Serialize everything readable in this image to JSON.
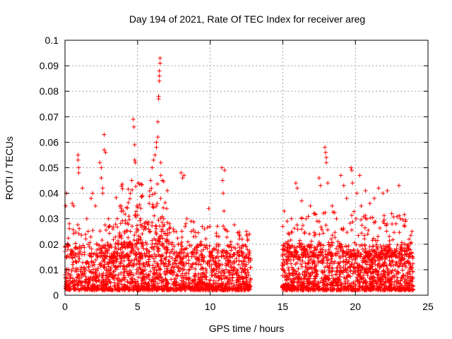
{
  "chart_data": {
    "type": "scatter",
    "title": "Day 194 of 2021, Rate Of TEC Index for receiver areg",
    "xlabel": "GPS time / hours",
    "ylabel": "ROTI / TECUs",
    "xlim": [
      0,
      25
    ],
    "ylim": [
      0,
      0.1
    ],
    "x_ticks": [
      0,
      5,
      10,
      15,
      20,
      25
    ],
    "x_tick_labels": [
      "0",
      "5",
      "10",
      "15",
      "20",
      "25"
    ],
    "y_ticks": [
      0,
      0.01,
      0.02,
      0.03,
      0.04,
      0.05,
      0.06,
      0.07,
      0.08,
      0.09,
      0.1
    ],
    "y_tick_labels": [
      "0",
      "0.01",
      "0.02",
      "0.03",
      "0.04",
      "0.05",
      "0.06",
      "0.07",
      "0.08",
      "0.09",
      "0.1"
    ],
    "grid": true,
    "marker": "plus",
    "color": "#ff0000",
    "data_gap_hours": [
      12.8,
      14.9
    ],
    "series": [
      {
        "values": [
          [
            0.05,
            0.035
          ],
          [
            0.1,
            0.04
          ],
          [
            0.3,
            0.028
          ],
          [
            0.5,
            0.036
          ],
          [
            0.6,
            0.035
          ],
          [
            0.9,
            0.055
          ],
          [
            0.9,
            0.053
          ],
          [
            0.95,
            0.05
          ],
          [
            0.95,
            0.048
          ],
          [
            1.2,
            0.042
          ],
          [
            1.5,
            0.03
          ],
          [
            1.8,
            0.038
          ],
          [
            1.9,
            0.04
          ],
          [
            2.1,
            0.035
          ],
          [
            2.4,
            0.052
          ],
          [
            2.5,
            0.05
          ],
          [
            2.5,
            0.046
          ],
          [
            2.6,
            0.042
          ],
          [
            2.6,
            0.04
          ],
          [
            2.7,
            0.063
          ],
          [
            2.7,
            0.057
          ],
          [
            2.8,
            0.056
          ],
          [
            3.0,
            0.03
          ],
          [
            3.3,
            0.026
          ],
          [
            3.6,
            0.03
          ],
          [
            3.9,
            0.033
          ],
          [
            4.1,
            0.025
          ],
          [
            4.4,
            0.031
          ],
          [
            4.5,
            0.04
          ],
          [
            4.6,
            0.045
          ],
          [
            4.7,
            0.069
          ],
          [
            4.75,
            0.066
          ],
          [
            4.8,
            0.053
          ],
          [
            4.8,
            0.059
          ],
          [
            4.85,
            0.052
          ],
          [
            5.2,
            0.03
          ],
          [
            5.5,
            0.027
          ],
          [
            5.8,
            0.036
          ],
          [
            5.9,
            0.045
          ],
          [
            6.0,
            0.05
          ],
          [
            6.1,
            0.053
          ],
          [
            6.2,
            0.055
          ],
          [
            6.2,
            0.04
          ],
          [
            6.3,
            0.058
          ],
          [
            6.3,
            0.06
          ],
          [
            6.4,
            0.062
          ],
          [
            6.4,
            0.068
          ],
          [
            6.45,
            0.077
          ],
          [
            6.45,
            0.078
          ],
          [
            6.5,
            0.084
          ],
          [
            6.5,
            0.086
          ],
          [
            6.5,
            0.088
          ],
          [
            6.55,
            0.091
          ],
          [
            6.55,
            0.093
          ],
          [
            6.6,
            0.047
          ],
          [
            6.6,
            0.052
          ],
          [
            6.7,
            0.045
          ],
          [
            6.8,
            0.03
          ],
          [
            7.0,
            0.034
          ],
          [
            7.2,
            0.028
          ],
          [
            7.5,
            0.025
          ],
          [
            7.8,
            0.02
          ],
          [
            8.0,
            0.048
          ],
          [
            8.1,
            0.046
          ],
          [
            8.2,
            0.047
          ],
          [
            8.4,
            0.03
          ],
          [
            8.7,
            0.025
          ],
          [
            9.0,
            0.023
          ],
          [
            9.3,
            0.02
          ],
          [
            9.6,
            0.026
          ],
          [
            9.9,
            0.034
          ],
          [
            10.3,
            0.018
          ],
          [
            10.6,
            0.023
          ],
          [
            10.8,
            0.05
          ],
          [
            10.85,
            0.045
          ],
          [
            10.9,
            0.04
          ],
          [
            10.95,
            0.033
          ],
          [
            11.0,
            0.049
          ],
          [
            11.0,
            0.026
          ],
          [
            11.3,
            0.019
          ],
          [
            11.6,
            0.016
          ],
          [
            11.9,
            0.02
          ],
          [
            12.2,
            0.022
          ],
          [
            12.5,
            0.025
          ],
          [
            12.7,
            0.024
          ],
          [
            15.0,
            0.027
          ],
          [
            15.1,
            0.033
          ],
          [
            15.3,
            0.029
          ],
          [
            15.6,
            0.03
          ],
          [
            15.9,
            0.044
          ],
          [
            16.0,
            0.042
          ],
          [
            16.3,
            0.037
          ],
          [
            16.6,
            0.03
          ],
          [
            16.9,
            0.035
          ],
          [
            17.2,
            0.032
          ],
          [
            17.5,
            0.046
          ],
          [
            17.6,
            0.043
          ],
          [
            17.9,
            0.058
          ],
          [
            17.95,
            0.056
          ],
          [
            18.0,
            0.054
          ],
          [
            18.0,
            0.052
          ],
          [
            18.1,
            0.044
          ],
          [
            18.4,
            0.035
          ],
          [
            18.7,
            0.03
          ],
          [
            19.0,
            0.047
          ],
          [
            19.2,
            0.043
          ],
          [
            19.4,
            0.038
          ],
          [
            19.7,
            0.05
          ],
          [
            19.75,
            0.049
          ],
          [
            19.8,
            0.044
          ],
          [
            20.1,
            0.04
          ],
          [
            20.3,
            0.047
          ],
          [
            20.4,
            0.035
          ],
          [
            20.7,
            0.041
          ],
          [
            21.0,
            0.036
          ],
          [
            21.3,
            0.038
          ],
          [
            21.6,
            0.042
          ],
          [
            21.9,
            0.04
          ],
          [
            22.2,
            0.041
          ],
          [
            22.5,
            0.032
          ],
          [
            22.8,
            0.028
          ],
          [
            23.0,
            0.043
          ],
          [
            23.1,
            0.03
          ],
          [
            23.4,
            0.027
          ],
          [
            23.7,
            0.022
          ],
          [
            23.9,
            0.025
          ]
        ],
        "dense_bands": [
          {
            "x_range": [
              0.0,
              12.8
            ],
            "y_range": [
              0.002,
              0.02
            ],
            "count": 1600
          },
          {
            "x_range": [
              0.0,
              12.8
            ],
            "y_range": [
              0.015,
              0.03
            ],
            "count": 260
          },
          {
            "x_range": [
              3.5,
              7.2
            ],
            "y_range": [
              0.02,
              0.045
            ],
            "count": 140
          },
          {
            "x_range": [
              14.95,
              24.0
            ],
            "y_range": [
              0.002,
              0.02
            ],
            "count": 1300
          },
          {
            "x_range": [
              14.95,
              24.0
            ],
            "y_range": [
              0.015,
              0.033
            ],
            "count": 260
          }
        ]
      }
    ]
  }
}
